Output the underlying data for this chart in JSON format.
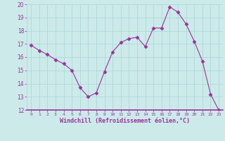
{
  "x": [
    0,
    1,
    2,
    3,
    4,
    5,
    6,
    7,
    8,
    9,
    10,
    11,
    12,
    13,
    14,
    15,
    16,
    17,
    18,
    19,
    20,
    21,
    22,
    23
  ],
  "y": [
    16.9,
    16.5,
    16.2,
    15.8,
    15.5,
    15.0,
    13.7,
    13.0,
    13.3,
    14.9,
    16.4,
    17.1,
    17.4,
    17.5,
    16.8,
    18.2,
    18.2,
    19.8,
    19.4,
    18.5,
    17.2,
    15.7,
    13.2,
    12.0
  ],
  "line_color": "#993399",
  "marker": "D",
  "marker_size": 2.5,
  "bg_color": "#cceaea",
  "grid_color": "#b0d8d8",
  "xlabel": "Windchill (Refroidissement éolien,°C)",
  "xlabel_color": "#993399",
  "tick_color": "#993399",
  "ylim": [
    12,
    20
  ],
  "xlim": [
    -0.5,
    23.5
  ],
  "yticks": [
    12,
    13,
    14,
    15,
    16,
    17,
    18,
    19,
    20
  ],
  "xticks": [
    0,
    1,
    2,
    3,
    4,
    5,
    6,
    7,
    8,
    9,
    10,
    11,
    12,
    13,
    14,
    15,
    16,
    17,
    18,
    19,
    20,
    21,
    22,
    23
  ]
}
